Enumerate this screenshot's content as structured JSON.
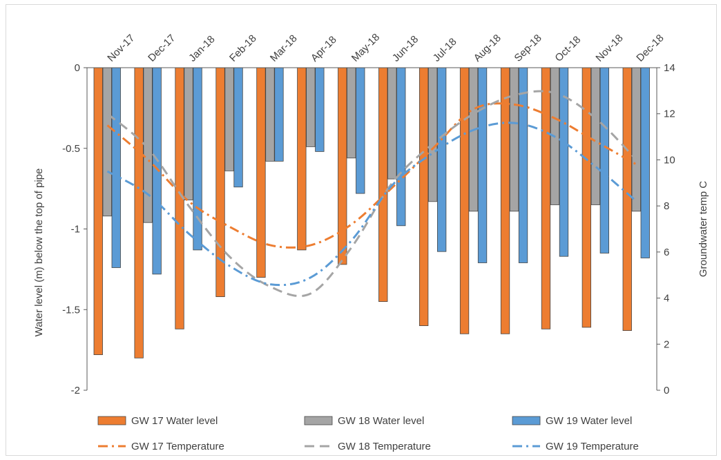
{
  "chart_data": {
    "type": "bar",
    "title": "",
    "categories": [
      "Nov-17",
      "Dec-17",
      "Jan-18",
      "Feb-18",
      "Mar-18",
      "Apr-18",
      "May-18",
      "Jun-18",
      "Jul-18",
      "Aug-18",
      "Sep-18",
      "Oct-18",
      "Nov-18",
      "Dec-18"
    ],
    "ylabel": "Water level (m) below the top of pipe",
    "y2label": "Groundwater temp C",
    "ylim": [
      -2,
      0
    ],
    "y2lim": [
      0,
      14
    ],
    "yticks": [
      "0",
      "-0.5",
      "-1",
      "-1.5",
      "-2"
    ],
    "y2ticks": [
      "14",
      "12",
      "10",
      "8",
      "6",
      "4",
      "2",
      "0"
    ],
    "x_axis_position": "top",
    "grid": false,
    "legend_position": "bottom",
    "bar_series": [
      {
        "name": "GW 17 Water level",
        "color": "#ED7D31",
        "values": [
          -1.78,
          -1.8,
          -1.62,
          -1.42,
          -1.3,
          -1.13,
          -1.22,
          -1.45,
          -1.6,
          -1.65,
          -1.65,
          -1.62,
          -1.61,
          -1.63
        ]
      },
      {
        "name": "GW 18 Water level",
        "color": "#A5A5A5",
        "values": [
          -0.92,
          -0.96,
          -0.82,
          -0.64,
          -0.58,
          -0.49,
          -0.56,
          -0.69,
          -0.83,
          -0.89,
          -0.89,
          -0.85,
          -0.85,
          -0.89
        ]
      },
      {
        "name": "GW 19 Water level",
        "color": "#5B9BD5",
        "values": [
          -1.24,
          -1.28,
          -1.13,
          -0.74,
          -0.58,
          -0.52,
          -0.78,
          -0.98,
          -1.14,
          -1.21,
          -1.21,
          -1.17,
          -1.15,
          -1.18
        ]
      }
    ],
    "line_series": [
      {
        "name": "GW 17 Temperature",
        "color": "#ED7D31",
        "values": [
          11.5,
          10.0,
          8.2,
          7.1,
          6.3,
          6.3,
          7.2,
          8.8,
          10.5,
          12.2,
          12.4,
          11.8,
          10.8,
          9.8
        ]
      },
      {
        "name": "GW 18 Temperature",
        "color": "#A5A5A5",
        "values": [
          12.0,
          10.5,
          8.0,
          5.8,
          4.5,
          4.2,
          6.2,
          9.0,
          10.7,
          12.0,
          12.8,
          12.9,
          11.8,
          10.0
        ]
      },
      {
        "name": "GW 19 Temperature",
        "color": "#5B9BD5",
        "values": [
          9.5,
          8.5,
          6.8,
          5.4,
          4.6,
          4.9,
          6.5,
          8.9,
          10.3,
          11.3,
          11.6,
          11.0,
          9.7,
          8.2
        ]
      }
    ]
  }
}
